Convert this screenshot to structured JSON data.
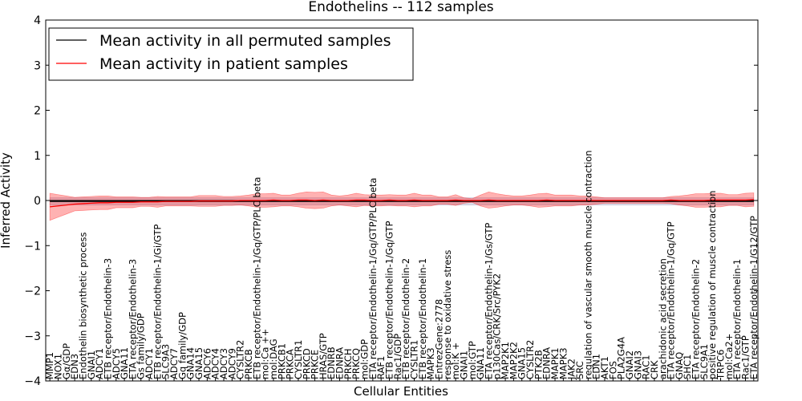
{
  "chart_data": {
    "type": "line",
    "title": "Endothelins -- 112 samples",
    "xlabel": "Cellular Entities",
    "ylabel": "Inferred Activity",
    "ylim": [
      -4,
      4
    ],
    "yticks": [
      -4,
      -3,
      -2,
      -1,
      0,
      1,
      2,
      3,
      4
    ],
    "legend_position": "top-left",
    "categories": [
      "MMP1",
      "NOX1",
      "Gα/GDP",
      "EDN3",
      "Endothelin biosynthetic process",
      "GNAI1",
      "ADCY1",
      "ETB receptor/Endothelin-3",
      "ADCY5",
      "GNA11",
      "ETA receptor/Endothelin-3",
      "Gs family/GDP",
      "ADCY1",
      "ETB receptor/Endothelin-1/Gi/GTP",
      "SLC9A3",
      "ADCY7",
      "Gq family/GDP",
      "GNA14",
      "GNA15",
      "ADCY6",
      "ADCY4",
      "ADCY3",
      "ADCY9",
      "CYSLTR2",
      "PRKCB",
      "ETB receptor/Endothelin-1/Gq/GTP/PLC beta",
      "mol:Ca ++",
      "mol:DAG",
      "PRKCB1",
      "PRKCA",
      "CYSLTR1",
      "PRKCD",
      "PRKCE",
      "HRAS/GTP",
      "EDNRB",
      "EDNRA",
      "PRKCH",
      "PRKCQ",
      "mol:GDP",
      "ETA receptor/Endothelin-1/Gq/GTP/PLC beta",
      "RAF1",
      "ETB receptor/Endothelin-1/Gq/GTP",
      "Rac1/GDP",
      "ETB receptor/Endothelin-2",
      "CYSLTR1",
      "ETB receptor/Endothelin-1",
      "MAPK3",
      "EntrezGene:2778",
      "response to oxidative stress",
      "mol:K +",
      "GNAI1",
      "mol:GTP",
      "GNA11",
      "ETA receptor/Endothelin-1/Gs/GTP",
      "p130Cas/CRK/Src/PYK2",
      "MAP2K1",
      "MAP2K2",
      "GNA15",
      "CYSLTR2",
      "PTK2B",
      "EDNRA",
      "MAPK1",
      "MAPK3",
      "JAK2",
      "SRC",
      "regulation of vascular smooth muscle contraction",
      "EDN1",
      "AKT1",
      "FOS",
      "PLA2G4A",
      "GNAI2",
      "GNAI3",
      "RAC1",
      "CRK",
      "arachidonic acid secretion",
      "ETA receptor/Endothelin-1/Gq/GTP",
      "GNAQ",
      "SHC1",
      "ETA receptor/Endothelin-2",
      "SLC9A1",
      "positive regulation of muscle contraction",
      "TRPC6",
      "mol:Ca2+",
      "ETA receptor/Endothelin-1",
      "Rac1/GTP",
      "ETA receptor/Endothelin-1/G12/GTP"
    ],
    "series": [
      {
        "name": "Mean activity in all permuted samples",
        "color": "#000000",
        "values": [
          -0.02,
          -0.02,
          -0.02,
          -0.02,
          -0.02,
          -0.02,
          -0.02,
          -0.02,
          -0.02,
          -0.02,
          -0.02,
          -0.02,
          -0.02,
          -0.02,
          -0.02,
          -0.02,
          -0.02,
          -0.02,
          -0.02,
          -0.02,
          -0.02,
          -0.02,
          -0.02,
          -0.02,
          -0.02,
          -0.02,
          -0.02,
          -0.02,
          -0.02,
          -0.02,
          -0.02,
          -0.02,
          -0.02,
          -0.02,
          -0.02,
          -0.02,
          -0.02,
          -0.02,
          -0.02,
          -0.02,
          -0.02,
          -0.02,
          -0.02,
          -0.02,
          -0.02,
          -0.02,
          -0.02,
          -0.02,
          -0.02,
          -0.02,
          -0.02,
          -0.02,
          -0.02,
          -0.02,
          -0.02,
          -0.02,
          -0.02,
          -0.02,
          -0.02,
          -0.02,
          -0.02,
          -0.02,
          -0.02,
          -0.02,
          -0.02,
          -0.02,
          -0.02,
          -0.02,
          -0.02,
          -0.02,
          -0.02,
          -0.02,
          -0.02,
          -0.02,
          -0.02,
          -0.02,
          -0.02,
          -0.02,
          -0.02,
          -0.02,
          -0.02,
          -0.02,
          -0.02,
          -0.02,
          -0.02,
          -0.02
        ],
        "band": 0.08
      },
      {
        "name": "Mean activity in patient samples",
        "color": "#ff0000",
        "values": [
          -0.14,
          -0.12,
          -0.1,
          -0.08,
          -0.07,
          -0.06,
          -0.05,
          -0.05,
          -0.04,
          -0.04,
          -0.04,
          -0.03,
          -0.03,
          -0.03,
          -0.02,
          -0.02,
          -0.02,
          -0.02,
          -0.01,
          -0.01,
          -0.01,
          -0.01,
          -0.01,
          0.0,
          0.0,
          0.0,
          0.0,
          0.01,
          0.0,
          0.0,
          0.01,
          0.01,
          0.0,
          0.01,
          0.0,
          0.0,
          0.0,
          0.01,
          0.01,
          0.0,
          0.0,
          0.01,
          0.0,
          0.0,
          0.01,
          0.0,
          0.0,
          0.0,
          0.0,
          0.01,
          0.0,
          0.0,
          0.0,
          0.01,
          0.0,
          0.0,
          0.0,
          0.0,
          0.0,
          0.0,
          0.01,
          0.0,
          0.0,
          0.0,
          0.0,
          0.0,
          0.0,
          0.0,
          0.0,
          0.0,
          0.0,
          0.0,
          0.0,
          0.0,
          0.0,
          0.01,
          0.0,
          0.0,
          0.0,
          0.0,
          0.01,
          0.01,
          0.01,
          0.01,
          0.01,
          0.02
        ],
        "band": [
          0.3,
          0.25,
          0.2,
          0.15,
          0.15,
          0.15,
          0.15,
          0.15,
          0.12,
          0.12,
          0.12,
          0.1,
          0.1,
          0.12,
          0.1,
          0.1,
          0.1,
          0.1,
          0.12,
          0.12,
          0.12,
          0.1,
          0.1,
          0.1,
          0.12,
          0.15,
          0.15,
          0.15,
          0.12,
          0.12,
          0.15,
          0.18,
          0.18,
          0.18,
          0.12,
          0.1,
          0.12,
          0.15,
          0.12,
          0.12,
          0.12,
          0.12,
          0.12,
          0.12,
          0.15,
          0.12,
          0.12,
          0.08,
          0.08,
          0.12,
          0.06,
          0.04,
          0.12,
          0.18,
          0.15,
          0.12,
          0.1,
          0.1,
          0.12,
          0.15,
          0.15,
          0.12,
          0.12,
          0.12,
          0.1,
          0.1,
          0.08,
          0.06,
          0.06,
          0.06,
          0.06,
          0.06,
          0.06,
          0.06,
          0.06,
          0.08,
          0.1,
          0.12,
          0.15,
          0.15,
          0.15,
          0.15,
          0.12,
          0.12,
          0.15,
          0.15
        ]
      }
    ]
  }
}
